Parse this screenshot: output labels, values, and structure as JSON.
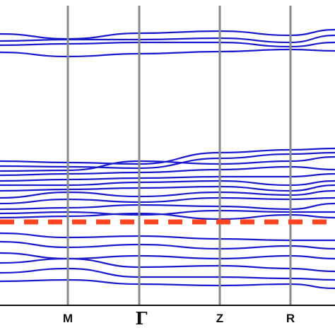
{
  "chart_data": {
    "type": "line",
    "title": "",
    "xlabel": "",
    "ylabel": "",
    "x_ticks": [
      "M",
      "Γ",
      "Z",
      "R"
    ],
    "grid": false,
    "legend": "none",
    "colors": {
      "bands": "#1a1acc",
      "fermi_level": "#ff4422",
      "high_symmetry_lines": "#8a8a8a",
      "axis": "#111111"
    },
    "fermi_level_style": "dashed",
    "band_groups": [
      {
        "name": "",
        "count": 4,
        "region": "top"
      },
      {
        "name": "",
        "count": 12,
        "region": "middle"
      },
      {
        "name": "",
        "count": 6,
        "region": "bottom"
      }
    ]
  }
}
